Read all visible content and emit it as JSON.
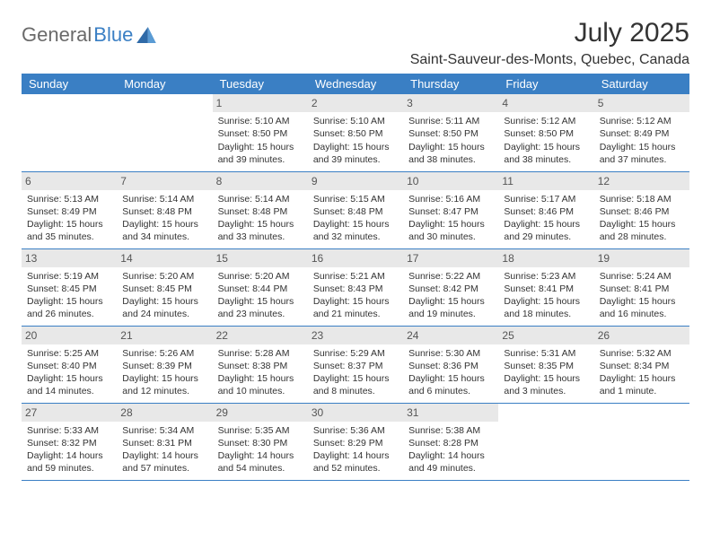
{
  "logo": {
    "text1": "General",
    "text2": "Blue"
  },
  "title": "July 2025",
  "location": "Saint-Sauveur-des-Monts, Quebec, Canada",
  "weekdays": [
    "Sunday",
    "Monday",
    "Tuesday",
    "Wednesday",
    "Thursday",
    "Friday",
    "Saturday"
  ],
  "colors": {
    "header_bg": "#3a7fc4",
    "header_fg": "#ffffff",
    "daynum_bg": "#e8e8e8",
    "border": "#3a7fc4",
    "text": "#333333",
    "logo_gray": "#6a6a6a",
    "logo_blue": "#3a7fc4"
  },
  "weeks": [
    [
      null,
      null,
      {
        "n": "1",
        "sr": "5:10 AM",
        "ss": "8:50 PM",
        "dl": "15 hours and 39 minutes."
      },
      {
        "n": "2",
        "sr": "5:10 AM",
        "ss": "8:50 PM",
        "dl": "15 hours and 39 minutes."
      },
      {
        "n": "3",
        "sr": "5:11 AM",
        "ss": "8:50 PM",
        "dl": "15 hours and 38 minutes."
      },
      {
        "n": "4",
        "sr": "5:12 AM",
        "ss": "8:50 PM",
        "dl": "15 hours and 38 minutes."
      },
      {
        "n": "5",
        "sr": "5:12 AM",
        "ss": "8:49 PM",
        "dl": "15 hours and 37 minutes."
      }
    ],
    [
      {
        "n": "6",
        "sr": "5:13 AM",
        "ss": "8:49 PM",
        "dl": "15 hours and 35 minutes."
      },
      {
        "n": "7",
        "sr": "5:14 AM",
        "ss": "8:48 PM",
        "dl": "15 hours and 34 minutes."
      },
      {
        "n": "8",
        "sr": "5:14 AM",
        "ss": "8:48 PM",
        "dl": "15 hours and 33 minutes."
      },
      {
        "n": "9",
        "sr": "5:15 AM",
        "ss": "8:48 PM",
        "dl": "15 hours and 32 minutes."
      },
      {
        "n": "10",
        "sr": "5:16 AM",
        "ss": "8:47 PM",
        "dl": "15 hours and 30 minutes."
      },
      {
        "n": "11",
        "sr": "5:17 AM",
        "ss": "8:46 PM",
        "dl": "15 hours and 29 minutes."
      },
      {
        "n": "12",
        "sr": "5:18 AM",
        "ss": "8:46 PM",
        "dl": "15 hours and 28 minutes."
      }
    ],
    [
      {
        "n": "13",
        "sr": "5:19 AM",
        "ss": "8:45 PM",
        "dl": "15 hours and 26 minutes."
      },
      {
        "n": "14",
        "sr": "5:20 AM",
        "ss": "8:45 PM",
        "dl": "15 hours and 24 minutes."
      },
      {
        "n": "15",
        "sr": "5:20 AM",
        "ss": "8:44 PM",
        "dl": "15 hours and 23 minutes."
      },
      {
        "n": "16",
        "sr": "5:21 AM",
        "ss": "8:43 PM",
        "dl": "15 hours and 21 minutes."
      },
      {
        "n": "17",
        "sr": "5:22 AM",
        "ss": "8:42 PM",
        "dl": "15 hours and 19 minutes."
      },
      {
        "n": "18",
        "sr": "5:23 AM",
        "ss": "8:41 PM",
        "dl": "15 hours and 18 minutes."
      },
      {
        "n": "19",
        "sr": "5:24 AM",
        "ss": "8:41 PM",
        "dl": "15 hours and 16 minutes."
      }
    ],
    [
      {
        "n": "20",
        "sr": "5:25 AM",
        "ss": "8:40 PM",
        "dl": "15 hours and 14 minutes."
      },
      {
        "n": "21",
        "sr": "5:26 AM",
        "ss": "8:39 PM",
        "dl": "15 hours and 12 minutes."
      },
      {
        "n": "22",
        "sr": "5:28 AM",
        "ss": "8:38 PM",
        "dl": "15 hours and 10 minutes."
      },
      {
        "n": "23",
        "sr": "5:29 AM",
        "ss": "8:37 PM",
        "dl": "15 hours and 8 minutes."
      },
      {
        "n": "24",
        "sr": "5:30 AM",
        "ss": "8:36 PM",
        "dl": "15 hours and 6 minutes."
      },
      {
        "n": "25",
        "sr": "5:31 AM",
        "ss": "8:35 PM",
        "dl": "15 hours and 3 minutes."
      },
      {
        "n": "26",
        "sr": "5:32 AM",
        "ss": "8:34 PM",
        "dl": "15 hours and 1 minute."
      }
    ],
    [
      {
        "n": "27",
        "sr": "5:33 AM",
        "ss": "8:32 PM",
        "dl": "14 hours and 59 minutes."
      },
      {
        "n": "28",
        "sr": "5:34 AM",
        "ss": "8:31 PM",
        "dl": "14 hours and 57 minutes."
      },
      {
        "n": "29",
        "sr": "5:35 AM",
        "ss": "8:30 PM",
        "dl": "14 hours and 54 minutes."
      },
      {
        "n": "30",
        "sr": "5:36 AM",
        "ss": "8:29 PM",
        "dl": "14 hours and 52 minutes."
      },
      {
        "n": "31",
        "sr": "5:38 AM",
        "ss": "8:28 PM",
        "dl": "14 hours and 49 minutes."
      },
      null,
      null
    ]
  ],
  "labels": {
    "sunrise": "Sunrise:",
    "sunset": "Sunset:",
    "daylight": "Daylight:"
  }
}
